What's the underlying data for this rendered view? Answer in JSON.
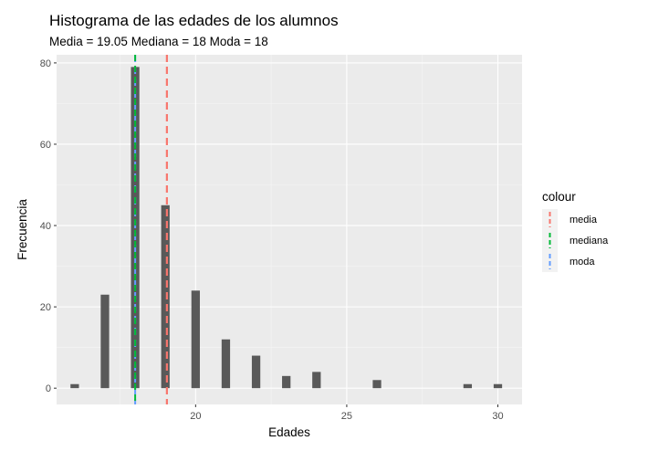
{
  "chart_data": {
    "type": "bar",
    "title": "Histograma de las edades de los alumnos",
    "subtitle": "Media = 19.05  Mediana = 18  Moda = 18",
    "xlabel": "Edades",
    "ylabel": "Frecuencia",
    "xlim": [
      15.4,
      30.8
    ],
    "ylim": [
      -4,
      82
    ],
    "x_ticks": [
      20,
      25,
      30
    ],
    "y_ticks": [
      0,
      20,
      40,
      60,
      80
    ],
    "x": [
      16,
      17,
      18,
      19,
      20,
      21,
      22,
      23,
      24,
      26,
      29,
      30
    ],
    "values": [
      1,
      23,
      79,
      45,
      24,
      12,
      8,
      3,
      4,
      2,
      1,
      1
    ],
    "bar_color": "#595959",
    "panel_background": "#ebebeb",
    "grid": true,
    "reference_lines": [
      {
        "name": "media",
        "value": 19.05,
        "color": "#f8766d",
        "linetype": "dashed"
      },
      {
        "name": "mediana",
        "value": 18,
        "color": "#00ba38",
        "linetype": "dashed"
      },
      {
        "name": "moda",
        "value": 18,
        "color": "#619cff",
        "linetype": "dashed"
      }
    ],
    "legend": {
      "title": "colour",
      "position": "right",
      "entries": [
        "media",
        "mediana",
        "moda"
      ]
    }
  }
}
